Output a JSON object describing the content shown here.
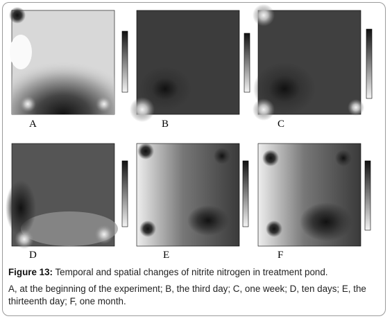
{
  "panels": [
    {
      "label": "A"
    },
    {
      "label": "B"
    },
    {
      "label": "C"
    },
    {
      "label": "D"
    },
    {
      "label": "E"
    },
    {
      "label": "F"
    }
  ],
  "caption": {
    "figure_label": "Figure 13:",
    "title": "Temporal and spatial changes of nitrite nitrogen in treatment pond.",
    "description": "A, at the beginning of the experiment; B, the third day; C, one week; D, ten days; E, the thirteenth day; F, one month."
  }
}
